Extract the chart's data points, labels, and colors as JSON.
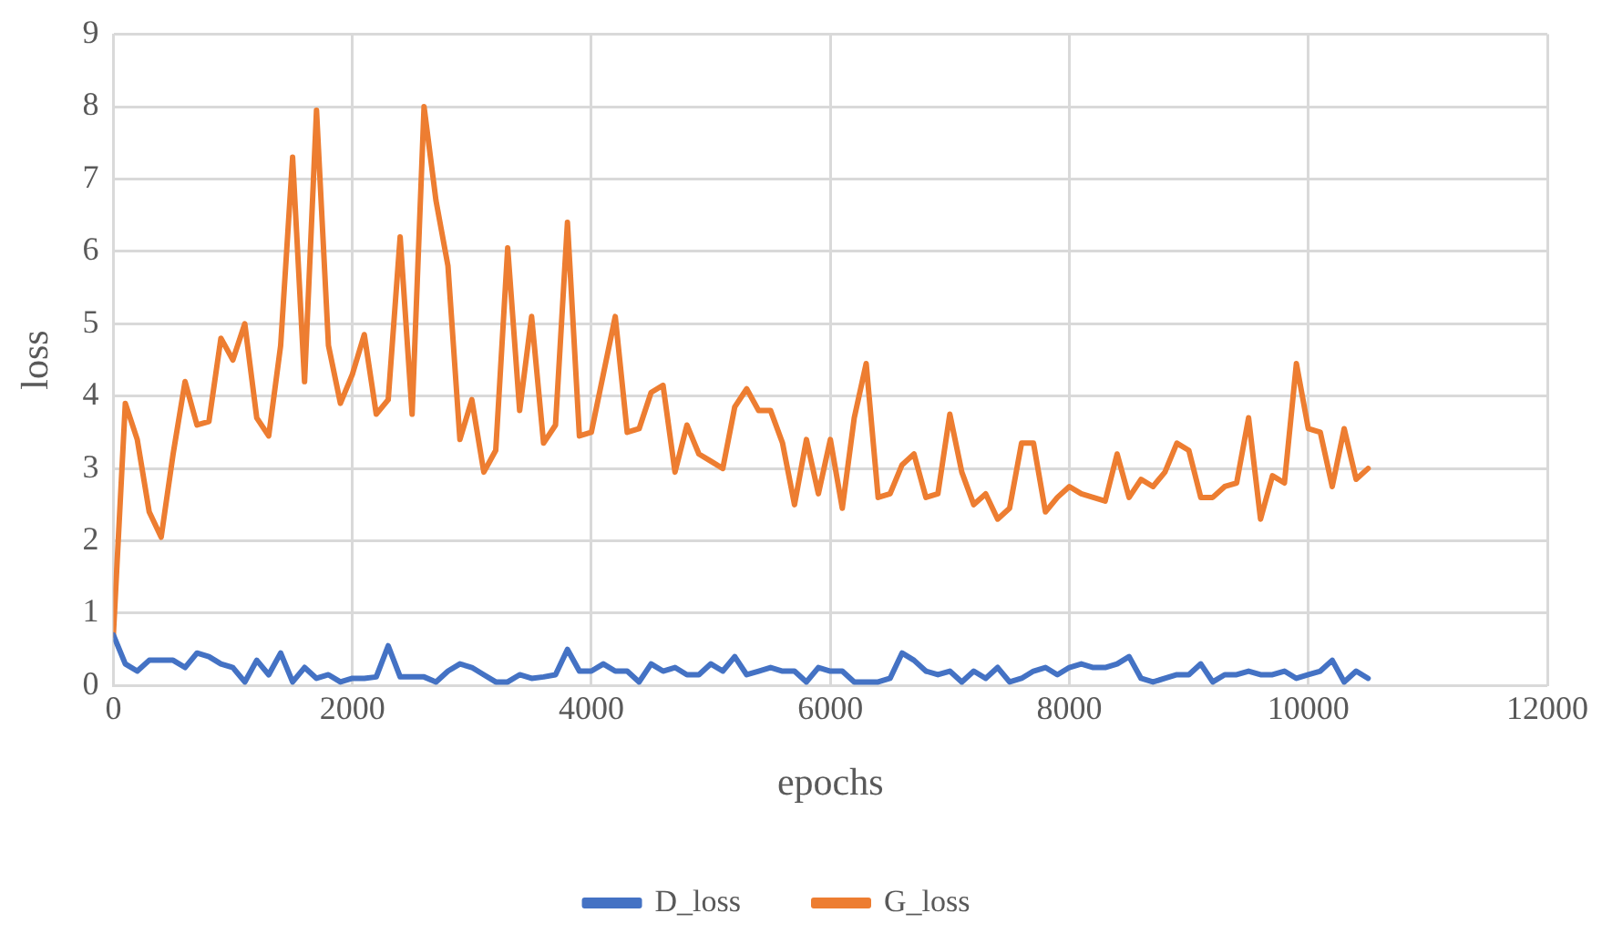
{
  "chart_data": {
    "type": "line",
    "xlabel": "epochs",
    "ylabel": "loss",
    "x": [
      0,
      100,
      200,
      300,
      400,
      500,
      600,
      700,
      800,
      900,
      1000,
      1100,
      1200,
      1300,
      1400,
      1500,
      1600,
      1700,
      1800,
      1900,
      2000,
      2100,
      2200,
      2300,
      2400,
      2500,
      2600,
      2700,
      2800,
      2900,
      3000,
      3100,
      3200,
      3300,
      3400,
      3500,
      3600,
      3700,
      3800,
      3900,
      4000,
      4100,
      4200,
      4300,
      4400,
      4500,
      4600,
      4700,
      4800,
      4900,
      5000,
      5100,
      5200,
      5300,
      5400,
      5500,
      5600,
      5700,
      5800,
      5900,
      6000,
      6100,
      6200,
      6300,
      6400,
      6500,
      6600,
      6700,
      6800,
      6900,
      7000,
      7100,
      7200,
      7300,
      7400,
      7500,
      7600,
      7700,
      7800,
      7900,
      8000,
      8100,
      8200,
      8300,
      8400,
      8500,
      8600,
      8700,
      8800,
      8900,
      9000,
      9100,
      9200,
      9300,
      9400,
      9500,
      9600,
      9700,
      9800,
      9900,
      10000,
      10100,
      10200,
      10300,
      10400,
      10500
    ],
    "series": [
      {
        "name": "D_loss",
        "color": "#4472c4",
        "values": [
          0.7,
          0.3,
          0.2,
          0.35,
          0.35,
          0.35,
          0.25,
          0.45,
          0.4,
          0.3,
          0.25,
          0.05,
          0.35,
          0.15,
          0.45,
          0.05,
          0.25,
          0.1,
          0.15,
          0.05,
          0.1,
          0.1,
          0.12,
          0.55,
          0.12,
          0.12,
          0.12,
          0.05,
          0.2,
          0.3,
          0.25,
          0.15,
          0.05,
          0.05,
          0.15,
          0.1,
          0.12,
          0.15,
          0.5,
          0.2,
          0.2,
          0.3,
          0.2,
          0.2,
          0.05,
          0.3,
          0.2,
          0.25,
          0.15,
          0.15,
          0.3,
          0.2,
          0.4,
          0.15,
          0.2,
          0.25,
          0.2,
          0.2,
          0.05,
          0.25,
          0.2,
          0.2,
          0.05,
          0.05,
          0.05,
          0.1,
          0.45,
          0.35,
          0.2,
          0.15,
          0.2,
          0.05,
          0.2,
          0.1,
          0.25,
          0.05,
          0.1,
          0.2,
          0.25,
          0.15,
          0.25,
          0.3,
          0.25,
          0.25,
          0.3,
          0.4,
          0.1,
          0.05,
          0.1,
          0.15,
          0.15,
          0.3,
          0.05,
          0.15,
          0.15,
          0.2,
          0.15,
          0.15,
          0.2,
          0.1,
          0.15,
          0.2,
          0.35,
          0.05,
          0.2,
          0.1
        ]
      },
      {
        "name": "G_loss",
        "color": "#ed7d31",
        "values": [
          0.7,
          3.9,
          3.4,
          2.4,
          2.05,
          3.2,
          4.2,
          3.6,
          3.65,
          4.8,
          4.5,
          5.0,
          3.7,
          3.45,
          4.7,
          7.3,
          4.2,
          7.95,
          4.7,
          3.9,
          4.3,
          4.85,
          3.75,
          3.95,
          6.2,
          3.75,
          8.0,
          6.7,
          5.8,
          3.4,
          3.95,
          2.95,
          3.25,
          6.05,
          3.8,
          5.1,
          3.35,
          3.6,
          6.4,
          3.45,
          3.5,
          4.3,
          5.1,
          3.5,
          3.55,
          4.05,
          4.15,
          2.95,
          3.6,
          3.2,
          3.1,
          3.0,
          3.85,
          4.1,
          3.8,
          3.8,
          3.35,
          2.5,
          3.4,
          2.65,
          3.4,
          2.45,
          3.7,
          4.45,
          2.6,
          2.65,
          3.05,
          3.2,
          2.6,
          2.65,
          3.75,
          2.95,
          2.5,
          2.65,
          2.3,
          2.45,
          3.35,
          3.35,
          2.4,
          2.6,
          2.75,
          2.65,
          2.6,
          2.55,
          3.2,
          2.6,
          2.85,
          2.75,
          2.95,
          3.35,
          3.25,
          2.6,
          2.6,
          2.75,
          2.8,
          3.7,
          2.3,
          2.9,
          2.8,
          4.45,
          3.55,
          3.5,
          2.75,
          3.55,
          2.85,
          3.0
        ]
      }
    ],
    "xlim": [
      0,
      12000
    ],
    "xticks": [
      0,
      2000,
      4000,
      6000,
      8000,
      10000,
      12000
    ],
    "ylim": [
      0,
      9
    ],
    "yticks": [
      0,
      1,
      2,
      3,
      4,
      5,
      6,
      7,
      8,
      9
    ],
    "grid": true,
    "legend": "bottom",
    "marker": "none",
    "line_style": "solid"
  }
}
